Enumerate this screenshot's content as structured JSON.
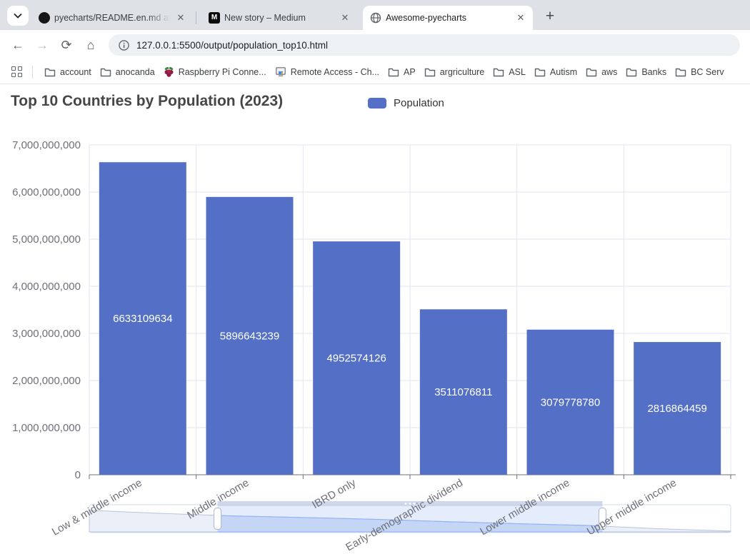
{
  "browser": {
    "tab_search_icon": "chevron-down",
    "tabs": [
      {
        "title": "pyecharts/README.en.md at m",
        "icon": "github"
      },
      {
        "title": "New story – Medium",
        "icon": "medium"
      },
      {
        "title": "Awesome-pyecharts",
        "icon": "globe",
        "active": true
      }
    ],
    "new_tab_label": "+",
    "nav": {
      "back": "←",
      "forward": "→",
      "reload": "⟳",
      "home": "⌂"
    },
    "url": "127.0.0.1:5500/output/population_top10.html",
    "bookmarks": [
      {
        "label": "account",
        "icon": "folder"
      },
      {
        "label": "anocanda",
        "icon": "folder"
      },
      {
        "label": "Raspberry Pi Conne...",
        "icon": "raspberry"
      },
      {
        "label": "Remote Access - Ch...",
        "icon": "remote-desktop"
      },
      {
        "label": "AP",
        "icon": "folder"
      },
      {
        "label": "argriculture",
        "icon": "folder"
      },
      {
        "label": "ASL",
        "icon": "folder"
      },
      {
        "label": "Autism",
        "icon": "folder"
      },
      {
        "label": "aws",
        "icon": "folder"
      },
      {
        "label": "Banks",
        "icon": "folder"
      },
      {
        "label": "BC Serv",
        "icon": "folder"
      }
    ]
  },
  "chart_data": {
    "type": "bar",
    "title": "Top 10 Countries by Population (2023)",
    "legend": [
      "Population"
    ],
    "legend_position": "top-center",
    "series_name": "Population",
    "categories": [
      "Low & middle income",
      "Middle income",
      "IBRD only",
      "Early-demographic dividend",
      "Lower middle income",
      "Upper middle income"
    ],
    "values": [
      6633109634,
      5896643239,
      4952574126,
      3511076811,
      3079778780,
      2816864459
    ],
    "xlabel": "",
    "ylabel": "",
    "ylim": [
      0,
      7000000000
    ],
    "ytick_step": 1000000000,
    "grid": true,
    "bar_color": "#5470c6",
    "value_label_color": "#ffffff",
    "axis_label_color": "#6e7079",
    "grid_line_color": "#e0e6f1",
    "axis_line_color": "#6e7079",
    "x_label_rotation_deg": -30,
    "datazoom": {
      "start_pct": 20,
      "end_pct": 80,
      "shadow_norm": [
        0.84,
        0.72,
        0.62,
        0.56,
        0.49,
        0.4,
        0.32,
        0.25,
        0.12,
        0.03
      ],
      "track_border_color": "#d2dbee",
      "selected_fill": "rgba(135,175,247,0.22)",
      "shadow_fill": "rgba(210,219,238,0.45)",
      "shadow_line": "#b8c4dd",
      "selected_shadow_line": "#8fb0f7"
    }
  }
}
